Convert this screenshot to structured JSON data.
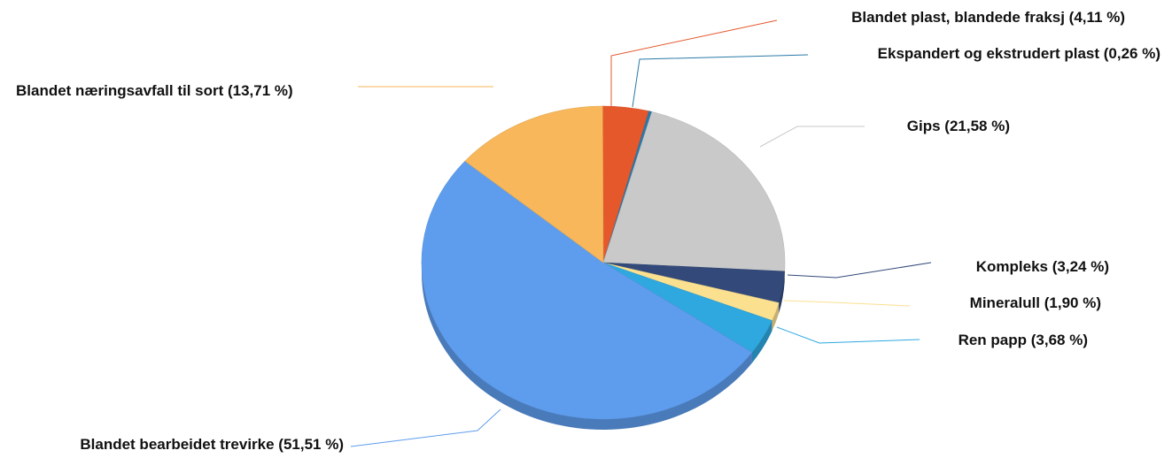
{
  "chart_data": {
    "type": "pie",
    "style": "3d",
    "slices": [
      {
        "label": "Blandet plast, blandede fraksj (4,11 %)",
        "value": 4.11,
        "color": "#e4582c"
      },
      {
        "label": "Ekspandert og ekstrudert plast (0,26 %)",
        "value": 0.26,
        "color": "#2b79a8"
      },
      {
        "label": "Gips (21,58 %)",
        "value": 21.58,
        "color": "#c9c9c9"
      },
      {
        "label": "Kompleks (3,24 %)",
        "value": 3.24,
        "color": "#32497a"
      },
      {
        "label": "Mineralull (1,90 %)",
        "value": 1.9,
        "color": "#fbe08f"
      },
      {
        "label": "Ren papp (3,68 %)",
        "value": 3.68,
        "color": "#2fa8e0"
      },
      {
        "label": "Blandet bearbeidet trevirke (51,51 %)",
        "value": 51.51,
        "color": "#5e9ded"
      },
      {
        "label": "Blandet næringsavfall til sort (13,71 %)",
        "value": 13.71,
        "color": "#f7b75a"
      }
    ]
  }
}
